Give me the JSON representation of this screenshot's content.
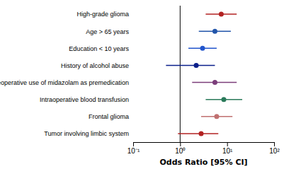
{
  "chart_data": {
    "type": "forest",
    "xlabel": "Odds Ratio [95% CI]",
    "categories": [
      "High-grade glioma",
      "Age > 65 years",
      "Education < 10 years",
      "History of alcohol abuse",
      "Preoperative use of midazolam as premedication",
      "Intraoperative blood transfusion",
      "Frontal glioma",
      "Tumor involving limbic system"
    ],
    "values": [
      7.5,
      5.5,
      3.0,
      2.2,
      5.5,
      8.5,
      6.0,
      2.8
    ],
    "ci_low": [
      3.5,
      2.5,
      1.5,
      0.5,
      1.8,
      3.5,
      2.8,
      0.9
    ],
    "ci_high": [
      16.0,
      12.0,
      6.0,
      5.5,
      16.0,
      21.0,
      13.0,
      6.5
    ],
    "colors": [
      "#b22222",
      "#2255aa",
      "#2255cc",
      "#0a1f8a",
      "#7b3d7a",
      "#2a7a5a",
      "#c07070",
      "#b22222"
    ],
    "log": "x",
    "xlim": [
      0.1,
      100
    ],
    "xticks": [
      {
        "value": 0.1,
        "label": "10⁻¹"
      },
      {
        "value": 1,
        "label": "10⁰"
      },
      {
        "value": 10,
        "label": "10¹"
      },
      {
        "value": 100,
        "label": "10²"
      }
    ],
    "vline": 1
  }
}
